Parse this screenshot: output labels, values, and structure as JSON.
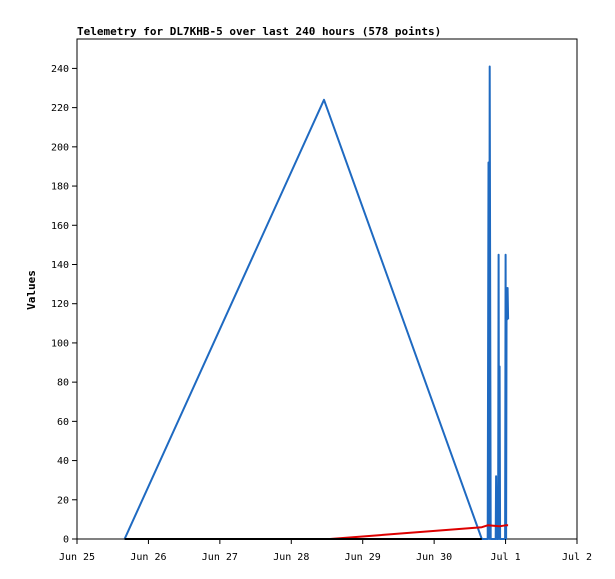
{
  "chart_data": {
    "type": "line",
    "title": "Telemetry for DL7KHB-5 over last 240 hours (578 points)",
    "xlabel": "",
    "ylabel": "Values",
    "x_axis": {
      "type": "date",
      "range": [
        "2024-06-25",
        "2024-07-02"
      ],
      "ticks": [
        {
          "value": "2024-06-25",
          "label": "Jun 25"
        },
        {
          "value": "2024-06-26",
          "label": "Jun 26"
        },
        {
          "value": "2024-06-27",
          "label": "Jun 27"
        },
        {
          "value": "2024-06-28",
          "label": "Jun 28"
        },
        {
          "value": "2024-06-29",
          "label": "Jun 29"
        },
        {
          "value": "2024-06-30",
          "label": "Jun 30"
        },
        {
          "value": "2024-07-01",
          "label": "Jul 1"
        },
        {
          "value": "2024-07-02",
          "label": "Jul 2"
        }
      ]
    },
    "y_axis": {
      "range": [
        0,
        255
      ],
      "ticks": [
        0,
        20,
        40,
        60,
        80,
        100,
        120,
        140,
        160,
        180,
        200,
        220,
        240
      ]
    },
    "grid": false,
    "legend": "none",
    "series": [
      {
        "color": "#1f6ac1",
        "points": [
          {
            "x": "2024-06-25T16:00",
            "y": 0
          },
          {
            "x": "2024-06-28T11:00",
            "y": 224
          },
          {
            "x": "2024-06-30T16:00",
            "y": 0
          },
          {
            "x": "2024-06-30T18:00",
            "y": 0
          },
          {
            "x": "2024-06-30T18:15",
            "y": 192
          },
          {
            "x": "2024-06-30T18:30",
            "y": 0
          },
          {
            "x": "2024-06-30T18:40",
            "y": 241
          },
          {
            "x": "2024-06-30T19:00",
            "y": 0
          },
          {
            "x": "2024-06-30T20:40",
            "y": 0
          },
          {
            "x": "2024-06-30T20:50",
            "y": 32
          },
          {
            "x": "2024-06-30T21:00",
            "y": 0
          },
          {
            "x": "2024-06-30T21:30",
            "y": 0
          },
          {
            "x": "2024-06-30T21:40",
            "y": 145
          },
          {
            "x": "2024-06-30T21:50",
            "y": 0
          },
          {
            "x": "2024-06-30T22:00",
            "y": 88
          },
          {
            "x": "2024-06-30T22:10",
            "y": 0
          },
          {
            "x": "2024-06-30T23:50",
            "y": 0
          },
          {
            "x": "2024-07-01T00:00",
            "y": 145
          },
          {
            "x": "2024-07-01T00:10",
            "y": 0
          },
          {
            "x": "2024-07-01T00:20",
            "y": 128
          },
          {
            "x": "2024-07-01T00:30",
            "y": 112
          },
          {
            "x": "2024-07-01T00:40",
            "y": 128
          },
          {
            "x": "2024-07-01T00:50",
            "y": 112
          }
        ]
      },
      {
        "color": "#dd0000",
        "points": [
          {
            "x": "2024-06-28T13:00",
            "y": 0
          },
          {
            "x": "2024-06-30T16:00",
            "y": 6
          },
          {
            "x": "2024-06-30T18:00",
            "y": 7
          },
          {
            "x": "2024-06-30T22:00",
            "y": 6.5
          },
          {
            "x": "2024-07-01T00:00",
            "y": 7
          },
          {
            "x": "2024-07-01T00:50",
            "y": 7
          }
        ]
      },
      {
        "color": "#000000",
        "points": [
          {
            "x": "2024-06-25T16:00",
            "y": 0
          },
          {
            "x": "2024-06-30T16:00",
            "y": 0
          }
        ]
      }
    ]
  }
}
